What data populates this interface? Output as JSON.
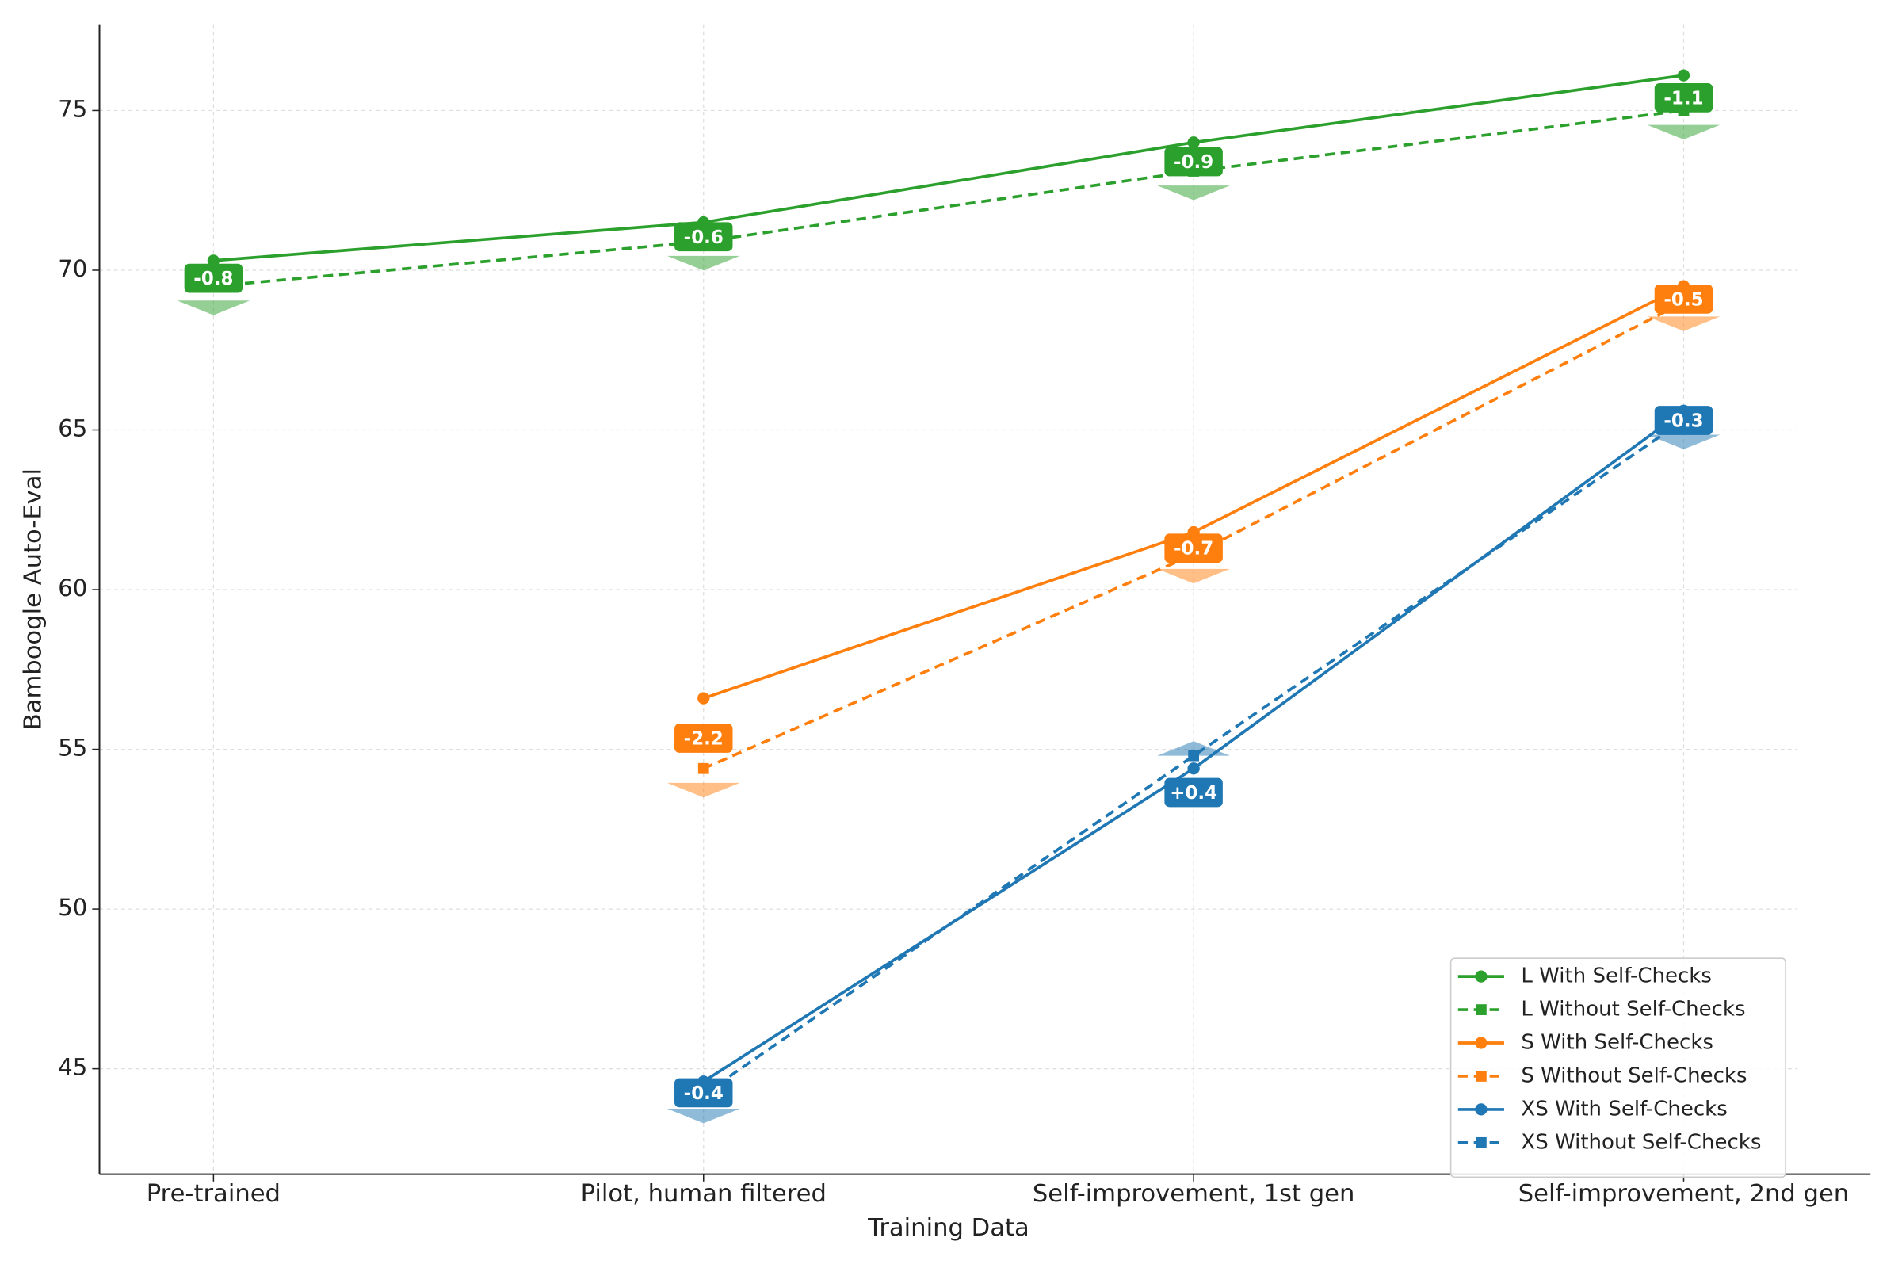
{
  "chart_data": {
    "type": "line",
    "xlabel": "Training Data",
    "ylabel": "Bamboogle Auto-Eval",
    "categories": [
      "Pre-trained",
      "Pilot, human filtered",
      "Self-improvement, 1st gen",
      "Self-improvement, 2nd gen"
    ],
    "ylim": [
      41.7,
      77.7
    ],
    "yticks": [
      45,
      50,
      55,
      60,
      65,
      70,
      75
    ],
    "grid": true,
    "legend": "lower right",
    "series": [
      {
        "name": "L With Self-Checks",
        "color": "#2ca02c",
        "linestyle": "solid",
        "marker": "circle",
        "values": [
          70.3,
          71.5,
          74.0,
          76.1
        ]
      },
      {
        "name": "L Without Self-Checks",
        "color": "#2ca02c",
        "linestyle": "dashed",
        "marker": "square",
        "values": [
          69.5,
          70.9,
          73.1,
          75.0
        ],
        "deltas": [
          -0.8,
          -0.6,
          -0.9,
          -1.1
        ],
        "delta_labels": [
          "-0.8",
          "-0.6",
          "-0.9",
          "-1.1"
        ]
      },
      {
        "name": "S With Self-Checks",
        "color": "#ff7f0e",
        "linestyle": "solid",
        "marker": "circle",
        "values": [
          null,
          56.6,
          61.8,
          69.5
        ]
      },
      {
        "name": "S Without Self-Checks",
        "color": "#ff7f0e",
        "linestyle": "dashed",
        "marker": "square",
        "values": [
          null,
          54.4,
          61.1,
          69.0
        ],
        "deltas": [
          null,
          -2.2,
          -0.7,
          -0.5
        ],
        "delta_labels": [
          null,
          "-2.2",
          "-0.7",
          "-0.5"
        ]
      },
      {
        "name": "XS With Self-Checks",
        "color": "#1f77b4",
        "linestyle": "solid",
        "marker": "circle",
        "values": [
          null,
          44.6,
          54.4,
          65.6
        ]
      },
      {
        "name": "XS Without Self-Checks",
        "color": "#1f77b4",
        "linestyle": "dashed",
        "marker": "square",
        "values": [
          null,
          44.2,
          54.8,
          65.3
        ],
        "deltas": [
          null,
          -0.4,
          0.4,
          -0.3
        ],
        "delta_labels": [
          null,
          "-0.4",
          "+0.4",
          "-0.3"
        ]
      }
    ]
  }
}
